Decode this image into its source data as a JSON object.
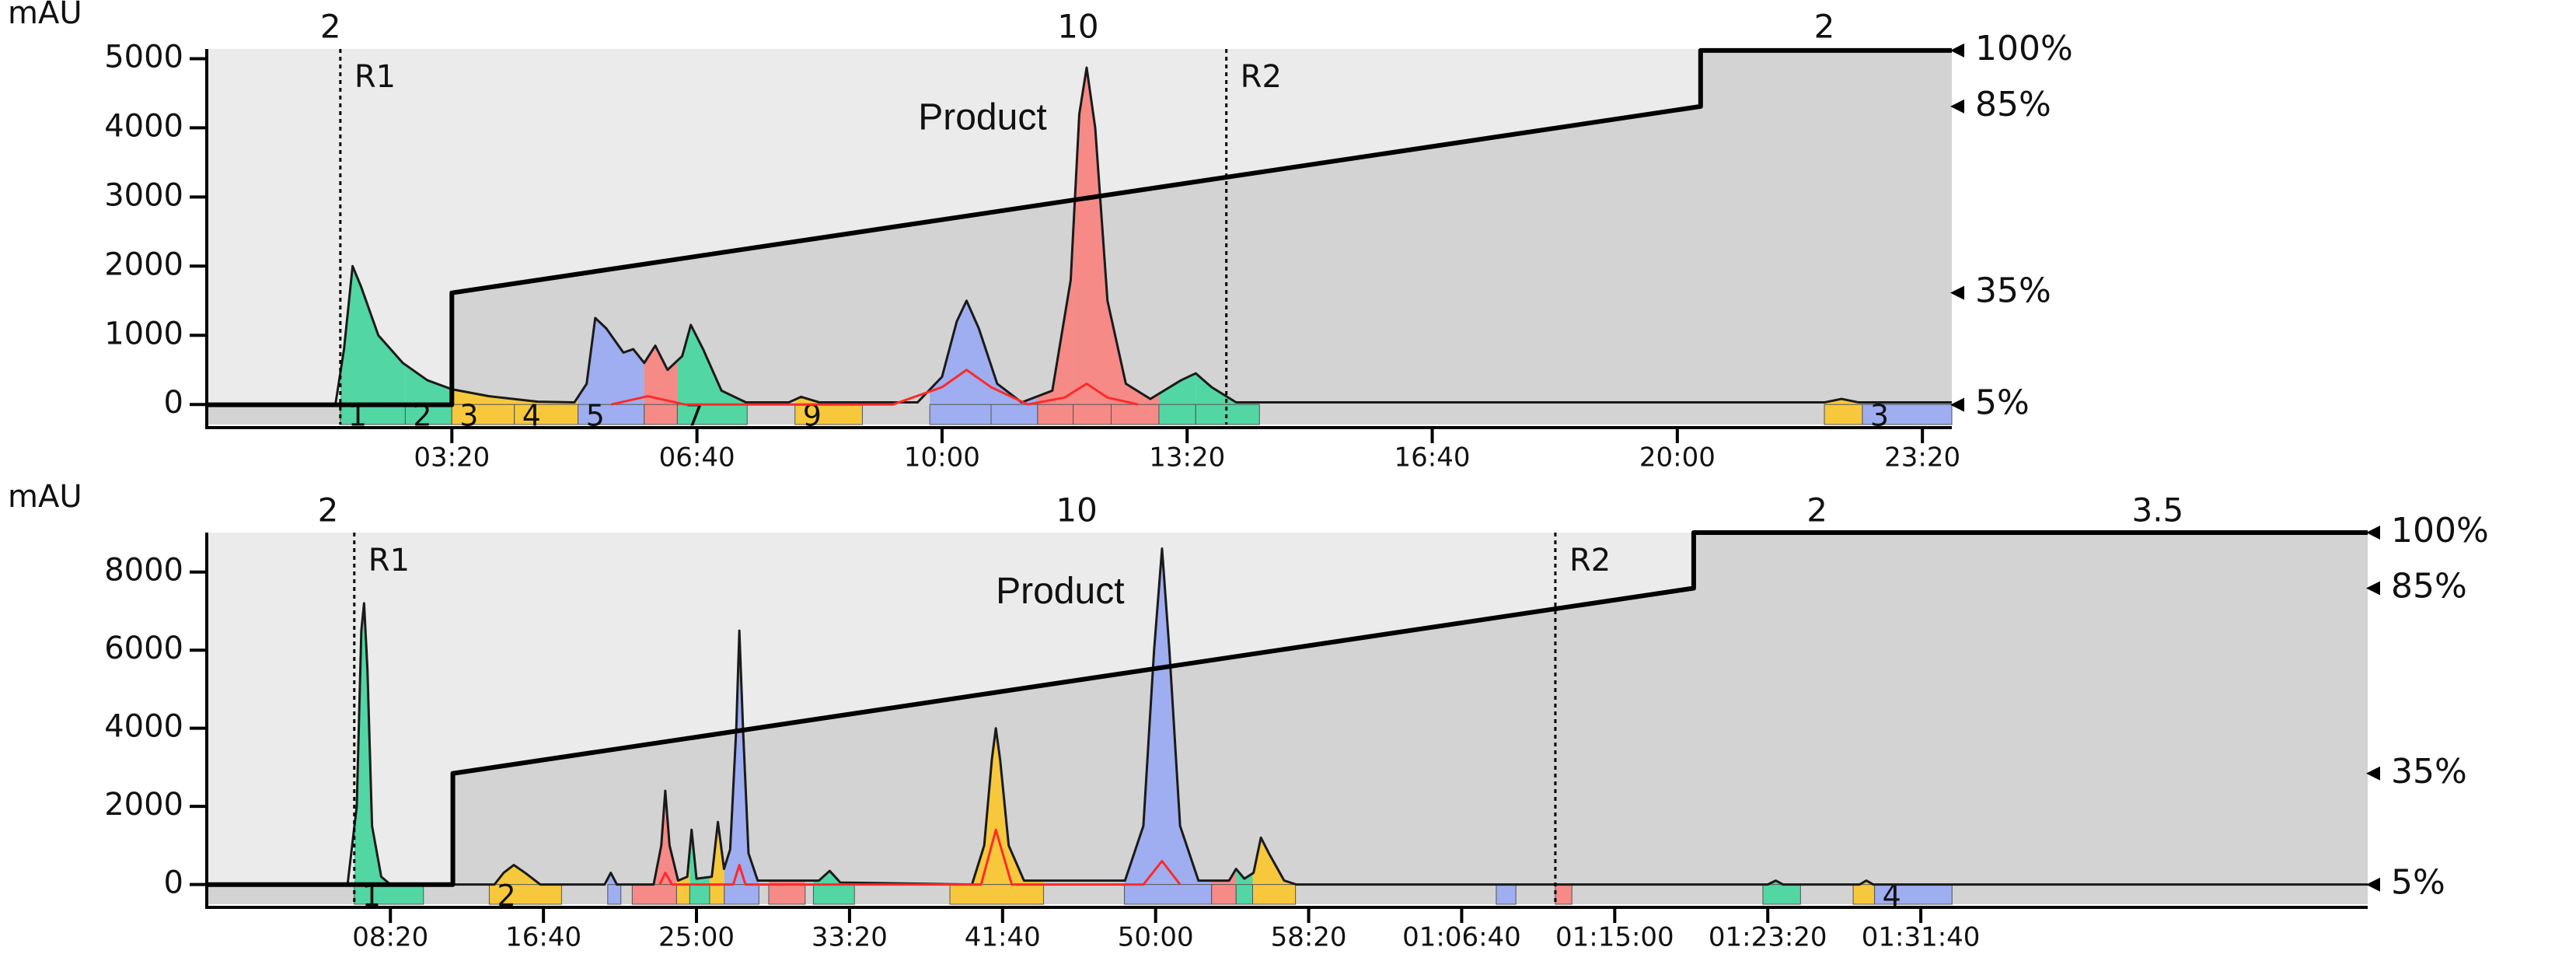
{
  "chart_data": [
    {
      "type": "line",
      "y_label": "mAU",
      "xlim": [
        0,
        1424
      ],
      "ylim": [
        -290,
        5140
      ],
      "y2lim": [
        -0.3,
        100.4
      ],
      "xticks": [
        {
          "value": 200,
          "label": "03:20"
        },
        {
          "value": 400,
          "label": "06:40"
        },
        {
          "value": 600,
          "label": "10:00"
        },
        {
          "value": 800,
          "label": "13:20"
        },
        {
          "value": 1000,
          "label": "16:40"
        },
        {
          "value": 1200,
          "label": "20:00"
        },
        {
          "value": 1400,
          "label": "23:20"
        }
      ],
      "yticks": [
        0,
        1000,
        2000,
        3000,
        4000,
        5000
      ],
      "y2ticks": [
        {
          "value": 5,
          "label": "5%"
        },
        {
          "value": 35,
          "label": "35%"
        },
        {
          "value": 85,
          "label": "85%"
        },
        {
          "value": 100,
          "label": "100%"
        }
      ],
      "series": [
        {
          "color": "#1a1a1a",
          "x": [
            0,
            105,
            112,
            119,
            126,
            140,
            160,
            180,
            200,
            230,
            270,
            300,
            310,
            317,
            326,
            340,
            348,
            357,
            366,
            376,
            388,
            395,
            405,
            420,
            440,
            475,
            485,
            500,
            580,
            600,
            612,
            620,
            630,
            645,
            665,
            690,
            705,
            712,
            718,
            725,
            735,
            750,
            770,
            795,
            807,
            820,
            840,
            1320,
            1334,
            1348,
            1424
          ],
          "values": [
            0,
            0,
            800,
            2000,
            1700,
            1000,
            600,
            350,
            220,
            120,
            40,
            30,
            300,
            1250,
            1100,
            750,
            800,
            600,
            850,
            500,
            700,
            1150,
            800,
            200,
            30,
            30,
            110,
            30,
            30,
            400,
            1200,
            1500,
            1100,
            300,
            30,
            200,
            1800,
            4200,
            4870,
            4000,
            1500,
            300,
            80,
            350,
            450,
            250,
            30,
            30,
            80,
            30,
            30
          ]
        },
        {
          "color": "#ff2a2a",
          "x": [
            330,
            360,
            390,
            560,
            600,
            620,
            640,
            670,
            700,
            718,
            735,
            760
          ],
          "values": [
            0,
            120,
            0,
            0,
            250,
            500,
            250,
            0,
            100,
            300,
            100,
            0
          ]
        },
        {
          "color": "#000000",
          "axis": "y2",
          "x": [
            0,
            200,
            200,
            1219,
            1219,
            1424
          ],
          "values": [
            5,
            5,
            35,
            85,
            100,
            100
          ]
        }
      ],
      "fractions": [
        {
          "start": 109,
          "end": 162,
          "color": "#52d6a4",
          "label": "1"
        },
        {
          "start": 162,
          "end": 200,
          "color": "#52d6a4",
          "label": "2"
        },
        {
          "start": 200,
          "end": 251,
          "color": "#f7c83c",
          "label": "3"
        },
        {
          "start": 251,
          "end": 303,
          "color": "#f7c83c",
          "label": "4"
        },
        {
          "start": 303,
          "end": 357,
          "color": "#9eaef0",
          "label": "5"
        },
        {
          "start": 357,
          "end": 384,
          "color": "#f58a87"
        },
        {
          "start": 384,
          "end": 441,
          "color": "#52d6a4",
          "label": "7"
        },
        {
          "start": 480,
          "end": 535,
          "color": "#f7c83c",
          "label": "9"
        },
        {
          "start": 590,
          "end": 640,
          "color": "#9eaef0"
        },
        {
          "start": 640,
          "end": 678,
          "color": "#9eaef0"
        },
        {
          "start": 678,
          "end": 707,
          "color": "#f58a87"
        },
        {
          "start": 707,
          "end": 738,
          "color": "#f58a87"
        },
        {
          "start": 738,
          "end": 777,
          "color": "#f58a87"
        },
        {
          "start": 777,
          "end": 807,
          "color": "#52d6a4"
        },
        {
          "start": 807,
          "end": 859,
          "color": "#52d6a4"
        },
        {
          "start": 1320,
          "end": 1351,
          "color": "#f7c83c"
        },
        {
          "start": 1351,
          "end": 1424,
          "color": "#9eaef0",
          "label": "3"
        }
      ],
      "markers": [
        {
          "text": "R1",
          "x": 109
        },
        {
          "text": "R2",
          "x": 832
        }
      ],
      "flow_labels": [
        {
          "text": "2",
          "x": 101
        },
        {
          "text": "10",
          "x": 711
        },
        {
          "text": "2",
          "x": 1320
        }
      ],
      "annotation": {
        "text": "Product",
        "x": 633,
        "y": 4120
      }
    },
    {
      "type": "line",
      "y_label": "mAU",
      "xlim": [
        -100,
        6960
      ],
      "ylim": [
        -505,
        9010
      ],
      "y2lim": [
        -0.3,
        100
      ],
      "xticks": [
        {
          "value": 500,
          "label": "08:20"
        },
        {
          "value": 1000,
          "label": "16:40"
        },
        {
          "value": 1500,
          "label": "25:00"
        },
        {
          "value": 2000,
          "label": "33:20"
        },
        {
          "value": 2500,
          "label": "41:40"
        },
        {
          "value": 3000,
          "label": "50:00"
        },
        {
          "value": 3500,
          "label": "58:20"
        },
        {
          "value": 4000,
          "label": "01:06:40"
        },
        {
          "value": 4500,
          "label": "01:15:00"
        },
        {
          "value": 5000,
          "label": "01:23:20"
        },
        {
          "value": 5500,
          "label": "01:31:40"
        }
      ],
      "yticks": [
        0,
        2000,
        4000,
        6000,
        8000
      ],
      "y2ticks": [
        {
          "value": 5,
          "label": "5%"
        },
        {
          "value": 35,
          "label": "35%"
        },
        {
          "value": 85,
          "label": "85%"
        },
        {
          "value": 100,
          "label": "100%"
        }
      ],
      "series": [
        {
          "color": "#1a1a1a",
          "x": [
            -100,
            360,
            390,
            405,
            414,
            425,
            440,
            470,
            500,
            840,
            870,
            903,
            940,
            990,
            1200,
            1220,
            1240,
            1360,
            1385,
            1398,
            1412,
            1440,
            1470,
            1484,
            1500,
            1550,
            1570,
            1590,
            1610,
            1630,
            1640,
            1652,
            1670,
            1700,
            1900,
            1935,
            1970,
            2400,
            2440,
            2465,
            2478,
            2492,
            2520,
            2570,
            2900,
            2960,
            2995,
            3021,
            3045,
            3080,
            3140,
            3240,
            3263,
            3290,
            3320,
            3344,
            3370,
            3420,
            3460,
            5000,
            5026,
            5050,
            5300,
            5322,
            5345,
            6960
          ],
          "values": [
            0,
            0,
            2000,
            6500,
            7200,
            5500,
            1500,
            200,
            0,
            0,
            300,
            500,
            300,
            0,
            0,
            300,
            0,
            0,
            1000,
            2400,
            1000,
            100,
            200,
            1400,
            150,
            200,
            1600,
            400,
            900,
            4000,
            6500,
            4000,
            800,
            100,
            100,
            350,
            50,
            0,
            1000,
            3200,
            4000,
            3200,
            1000,
            100,
            100,
            1500,
            6000,
            8600,
            6000,
            1500,
            100,
            100,
            400,
            150,
            300,
            1200,
            800,
            100,
            0,
            0,
            100,
            0,
            0,
            100,
            0,
            0
          ]
        },
        {
          "color": "#ff2a2a",
          "x": [
            1380,
            1398,
            1420,
            1620,
            1640,
            1660,
            2430,
            2478,
            2530,
            2960,
            3021,
            3080
          ],
          "values": [
            0,
            300,
            0,
            0,
            500,
            0,
            0,
            1400,
            0,
            0,
            600,
            0
          ]
        },
        {
          "color": "#000000",
          "axis": "y2",
          "x": [
            -100,
            704,
            704,
            4758,
            4758,
            6960
          ],
          "values": [
            5,
            5,
            35,
            85,
            100,
            100
          ]
        }
      ],
      "fractions": [
        {
          "start": 382,
          "end": 608,
          "color": "#52d6a4",
          "label": "1"
        },
        {
          "start": 823,
          "end": 1059,
          "color": "#f7c83c",
          "label": "2"
        },
        {
          "start": 1210,
          "end": 1253,
          "color": "#9eaef0"
        },
        {
          "start": 1290,
          "end": 1435,
          "color": "#f58a87"
        },
        {
          "start": 1435,
          "end": 1478,
          "color": "#f7c83c"
        },
        {
          "start": 1478,
          "end": 1543,
          "color": "#52d6a4"
        },
        {
          "start": 1543,
          "end": 1591,
          "color": "#f7c83c"
        },
        {
          "start": 1591,
          "end": 1704,
          "color": "#9eaef0"
        },
        {
          "start": 1736,
          "end": 1855,
          "color": "#f58a87"
        },
        {
          "start": 1882,
          "end": 2016,
          "color": "#52d6a4"
        },
        {
          "start": 2328,
          "end": 2634,
          "color": "#f7c83c"
        },
        {
          "start": 2898,
          "end": 3183,
          "color": "#9eaef0"
        },
        {
          "start": 3183,
          "end": 3263,
          "color": "#f58a87"
        },
        {
          "start": 3263,
          "end": 3317,
          "color": "#52d6a4"
        },
        {
          "start": 3317,
          "end": 3457,
          "color": "#f7c83c"
        },
        {
          "start": 4113,
          "end": 4177,
          "color": "#9eaef0"
        },
        {
          "start": 4306,
          "end": 4360,
          "color": "#f58a87"
        },
        {
          "start": 4984,
          "end": 5107,
          "color": "#52d6a4"
        },
        {
          "start": 5279,
          "end": 5349,
          "color": "#f7c83c"
        },
        {
          "start": 5349,
          "end": 5602,
          "color": "#9eaef0",
          "label": "4"
        }
      ],
      "markers": [
        {
          "text": "R1",
          "x": 382
        },
        {
          "text": "R2",
          "x": 4306
        }
      ],
      "flow_labels": [
        {
          "text": "2",
          "x": 296
        },
        {
          "text": "10",
          "x": 2742
        },
        {
          "text": "2",
          "x": 5161
        },
        {
          "text": "3.5",
          "x": 6274
        }
      ],
      "annotation": {
        "text": "Product",
        "x": 2688,
        "y": 7450
      }
    }
  ]
}
